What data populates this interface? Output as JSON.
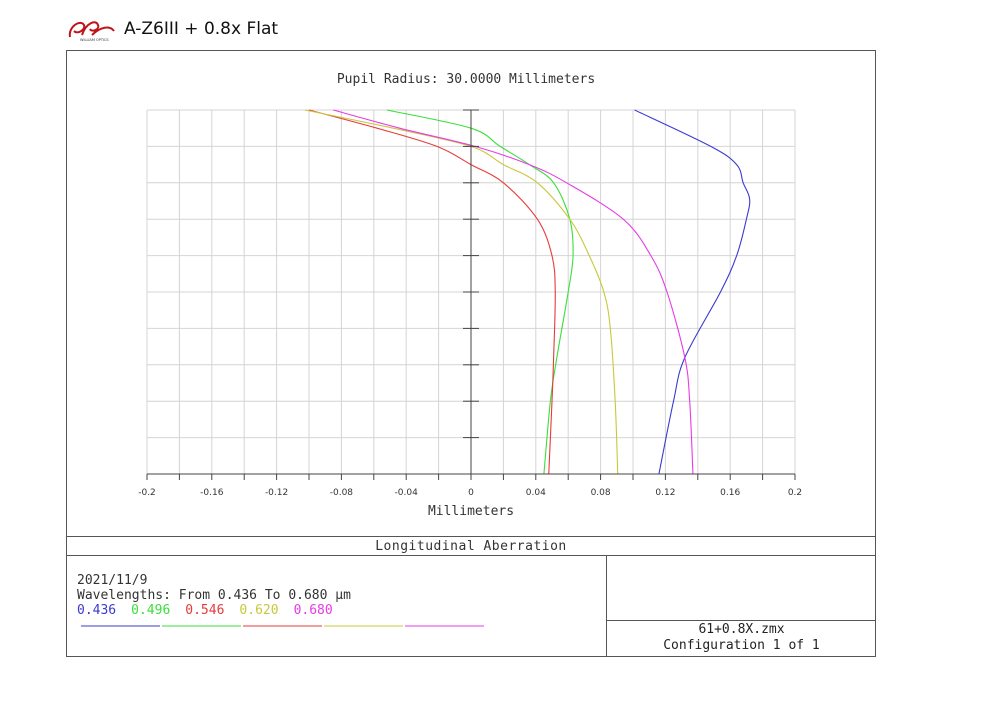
{
  "header": {
    "logo_text": "WILLIAM OPTICS",
    "title": "A-Z6III + 0.8x Flat"
  },
  "chart_data": {
    "type": "line",
    "title": "Pupil Radius: 30.0000 Millimeters",
    "xlabel": "Millimeters",
    "ylabel": "",
    "xlim": [
      -0.2,
      0.2
    ],
    "ylim": [
      0,
      1
    ],
    "grid": true,
    "xticks": [
      "-0.2",
      "-0.16",
      "-0.12",
      "-0.08",
      "-0.04",
      "0",
      "0.04",
      "0.08",
      "0.12",
      "0.16",
      "0.2"
    ],
    "pupil": [
      0,
      0.2,
      0.32,
      0.5,
      0.6,
      0.7,
      0.755,
      0.8,
      0.85,
      0.9,
      0.95,
      1.0
    ],
    "series": [
      {
        "name": "0.436",
        "color": "#3a3ad0",
        "points": [
          [
            0.116,
            0
          ],
          [
            0.125,
            0.2
          ],
          [
            0.132,
            0.32
          ],
          [
            0.154,
            0.5
          ],
          [
            0.164,
            0.6
          ],
          [
            0.17,
            0.7
          ],
          [
            0.172,
            0.755
          ],
          [
            0.168,
            0.8
          ],
          [
            0.164,
            0.85
          ],
          [
            0.148,
            0.9
          ],
          [
            0.101,
            1.0
          ]
        ]
      },
      {
        "name": "0.496",
        "color": "#3adf3a",
        "points": [
          [
            0.045,
            0
          ],
          [
            0.049,
            0.2
          ],
          [
            0.053,
            0.32
          ],
          [
            0.06,
            0.5
          ],
          [
            0.063,
            0.6
          ],
          [
            0.061,
            0.7
          ],
          [
            0.051,
            0.8
          ],
          [
            0.036,
            0.85
          ],
          [
            0.018,
            0.9
          ],
          [
            0.0,
            0.95
          ],
          [
            -0.052,
            1.0
          ]
        ]
      },
      {
        "name": "0.546",
        "color": "#e83a3a",
        "points": [
          [
            0.048,
            0
          ],
          [
            0.05,
            0.2
          ],
          [
            0.051,
            0.32
          ],
          [
            0.052,
            0.5
          ],
          [
            0.05,
            0.6
          ],
          [
            0.041,
            0.7
          ],
          [
            0.02,
            0.8
          ],
          [
            0.0,
            0.85
          ],
          [
            -0.021,
            0.9
          ],
          [
            -0.058,
            0.95
          ],
          [
            -0.1,
            1.0
          ]
        ]
      },
      {
        "name": "0.620",
        "color": "#c8c83a",
        "points": [
          [
            0.0906,
            0
          ],
          [
            0.089,
            0.2
          ],
          [
            0.086,
            0.4
          ],
          [
            0.082,
            0.5
          ],
          [
            0.073,
            0.6
          ],
          [
            0.061,
            0.7
          ],
          [
            0.041,
            0.8
          ],
          [
            0.02,
            0.85
          ],
          [
            0.0,
            0.9
          ],
          [
            -0.048,
            0.95
          ],
          [
            -0.1025,
            1.0
          ]
        ]
      },
      {
        "name": "0.680",
        "color": "#e83ae8",
        "points": [
          [
            0.137,
            0
          ],
          [
            0.135,
            0.2
          ],
          [
            0.132,
            0.32
          ],
          [
            0.121,
            0.5
          ],
          [
            0.111,
            0.6
          ],
          [
            0.094,
            0.7
          ],
          [
            0.059,
            0.8
          ],
          [
            0.036,
            0.85
          ],
          [
            0.0025,
            0.9
          ],
          [
            -0.044,
            0.95
          ],
          [
            -0.085,
            1.0
          ]
        ]
      }
    ]
  },
  "footer": {
    "plot_name": "Longitudinal Aberration",
    "date": "2021/11/9",
    "wavelengths_text": "Wavelengths: From 0.436 To 0.680 µm",
    "wavelengths": [
      "0.436",
      "0.496",
      "0.546",
      "0.620",
      "0.680"
    ],
    "file": "61+0.8X.zmx",
    "configuration": "Configuration 1 of 1"
  }
}
